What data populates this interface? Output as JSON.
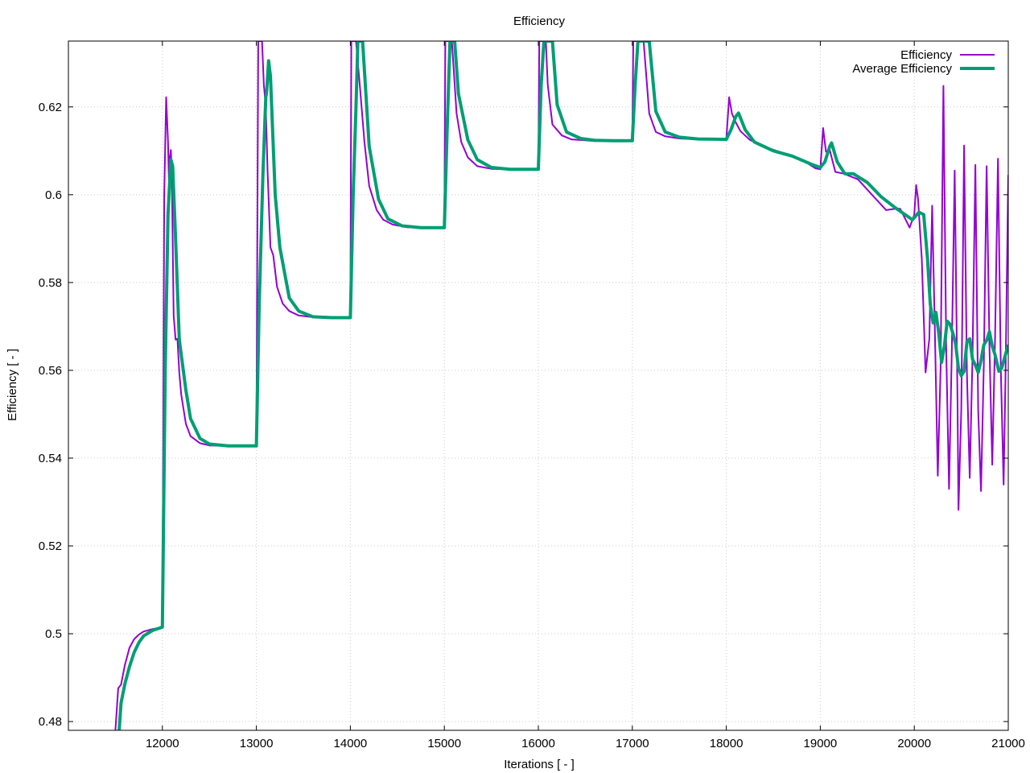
{
  "chart_data": {
    "type": "line",
    "title": "Efficiency",
    "xlabel": "Iterations [ - ]",
    "ylabel": "Efficiency [ - ]",
    "xlim": [
      11000,
      21000
    ],
    "ylim": [
      0.478,
      0.635
    ],
    "xticks": [
      12000,
      13000,
      14000,
      15000,
      16000,
      17000,
      18000,
      19000,
      20000,
      21000
    ],
    "yticks": [
      0.48,
      0.5,
      0.52,
      0.54,
      0.56,
      0.58,
      0.6,
      0.62
    ],
    "ytick_labels": [
      "0.48",
      "0.5",
      "0.52",
      "0.54",
      "0.56",
      "0.58",
      "0.6",
      "0.62"
    ],
    "grid": true,
    "legend_position": "top-right",
    "series": [
      {
        "name": "Efficiency",
        "color": "#9400d3",
        "points": [
          [
            11500,
            0.478
          ],
          [
            11530,
            0.4876
          ],
          [
            11560,
            0.4884
          ],
          [
            11600,
            0.4928
          ],
          [
            11650,
            0.4968
          ],
          [
            11700,
            0.4988
          ],
          [
            11750,
            0.4998
          ],
          [
            11800,
            0.5005
          ],
          [
            11900,
            0.5011
          ],
          [
            12000,
            0.5014
          ],
          [
            12020,
            0.6
          ],
          [
            12040,
            0.6222
          ],
          [
            12060,
            0.612
          ],
          [
            12070,
            0.6025
          ],
          [
            12080,
            0.6085
          ],
          [
            12090,
            0.6102
          ],
          [
            12100,
            0.605
          ],
          [
            12120,
            0.5725
          ],
          [
            12140,
            0.567
          ],
          [
            12160,
            0.5672
          ],
          [
            12180,
            0.5595
          ],
          [
            12200,
            0.5545
          ],
          [
            12250,
            0.5478
          ],
          [
            12300,
            0.545
          ],
          [
            12400,
            0.5434
          ],
          [
            12500,
            0.5429
          ],
          [
            12700,
            0.5428
          ],
          [
            13000,
            0.5428
          ],
          [
            13020,
            0.635
          ],
          [
            13060,
            0.635
          ],
          [
            13080,
            0.625
          ],
          [
            13100,
            0.62
          ],
          [
            13120,
            0.605
          ],
          [
            13150,
            0.588
          ],
          [
            13180,
            0.5862
          ],
          [
            13220,
            0.579
          ],
          [
            13280,
            0.5752
          ],
          [
            13350,
            0.5735
          ],
          [
            13450,
            0.5725
          ],
          [
            13600,
            0.5721
          ],
          [
            13800,
            0.572
          ],
          [
            14000,
            0.572
          ],
          [
            14010,
            0.635
          ],
          [
            14060,
            0.635
          ],
          [
            14100,
            0.625
          ],
          [
            14150,
            0.612
          ],
          [
            14200,
            0.602
          ],
          [
            14280,
            0.5965
          ],
          [
            14350,
            0.5943
          ],
          [
            14450,
            0.5932
          ],
          [
            14600,
            0.5926
          ],
          [
            14800,
            0.5925
          ],
          [
            15000,
            0.5925
          ],
          [
            15010,
            0.635
          ],
          [
            15080,
            0.635
          ],
          [
            15130,
            0.6185
          ],
          [
            15180,
            0.612
          ],
          [
            15250,
            0.6085
          ],
          [
            15350,
            0.6065
          ],
          [
            15500,
            0.6059
          ],
          [
            15700,
            0.6058
          ],
          [
            16000,
            0.6058
          ],
          [
            16010,
            0.635
          ],
          [
            16080,
            0.635
          ],
          [
            16100,
            0.625
          ],
          [
            16150,
            0.616
          ],
          [
            16250,
            0.6135
          ],
          [
            16350,
            0.6126
          ],
          [
            16500,
            0.6124
          ],
          [
            16600,
            0.6122
          ],
          [
            16700,
            0.6124
          ],
          [
            16800,
            0.6122
          ],
          [
            17000,
            0.6122
          ],
          [
            17010,
            0.635
          ],
          [
            17120,
            0.635
          ],
          [
            17180,
            0.6185
          ],
          [
            17250,
            0.6143
          ],
          [
            17350,
            0.6133
          ],
          [
            17500,
            0.6128
          ],
          [
            17700,
            0.6126
          ],
          [
            18000,
            0.6126
          ],
          [
            18030,
            0.6222
          ],
          [
            18060,
            0.6185
          ],
          [
            18100,
            0.6165
          ],
          [
            18150,
            0.6145
          ],
          [
            18250,
            0.6125
          ],
          [
            18400,
            0.611
          ],
          [
            18600,
            0.6095
          ],
          [
            18800,
            0.608
          ],
          [
            18950,
            0.606
          ],
          [
            19000,
            0.6058
          ],
          [
            19030,
            0.6152
          ],
          [
            19060,
            0.6098
          ],
          [
            19100,
            0.6102
          ],
          [
            19160,
            0.6052
          ],
          [
            19250,
            0.6048
          ],
          [
            19400,
            0.6035
          ],
          [
            19550,
            0.6
          ],
          [
            19700,
            0.5965
          ],
          [
            19800,
            0.5968
          ],
          [
            19850,
            0.5968
          ],
          [
            19950,
            0.5925
          ],
          [
            20000,
            0.5955
          ],
          [
            20020,
            0.6022
          ],
          [
            20040,
            0.599
          ],
          [
            20080,
            0.5855
          ],
          [
            20120,
            0.5595
          ],
          [
            20160,
            0.5672
          ],
          [
            20190,
            0.5975
          ],
          [
            20220,
            0.568
          ],
          [
            20250,
            0.536
          ],
          [
            20280,
            0.5605
          ],
          [
            20310,
            0.6248
          ],
          [
            20340,
            0.5645
          ],
          [
            20370,
            0.533
          ],
          [
            20400,
            0.5652
          ],
          [
            20430,
            0.6055
          ],
          [
            20460,
            0.5535
          ],
          [
            20470,
            0.5282
          ],
          [
            20500,
            0.551
          ],
          [
            20530,
            0.6112
          ],
          [
            20560,
            0.5595
          ],
          [
            20590,
            0.5355
          ],
          [
            20620,
            0.5635
          ],
          [
            20650,
            0.6068
          ],
          [
            20680,
            0.551
          ],
          [
            20710,
            0.5325
          ],
          [
            20740,
            0.5612
          ],
          [
            20770,
            0.6065
          ],
          [
            20800,
            0.5655
          ],
          [
            20830,
            0.5385
          ],
          [
            20860,
            0.5675
          ],
          [
            20890,
            0.6082
          ],
          [
            20920,
            0.5605
          ],
          [
            20950,
            0.534
          ],
          [
            20970,
            0.558
          ],
          [
            21000,
            0.6045
          ]
        ]
      },
      {
        "name": "Average Efficiency",
        "color": "#009e73",
        "points": [
          [
            11540,
            0.478
          ],
          [
            11560,
            0.4842
          ],
          [
            11600,
            0.4885
          ],
          [
            11650,
            0.4925
          ],
          [
            11700,
            0.4958
          ],
          [
            11750,
            0.498
          ],
          [
            11800,
            0.4995
          ],
          [
            11900,
            0.5008
          ],
          [
            12000,
            0.5015
          ],
          [
            12030,
            0.56
          ],
          [
            12060,
            0.5955
          ],
          [
            12090,
            0.608
          ],
          [
            12110,
            0.6065
          ],
          [
            12140,
            0.59
          ],
          [
            12180,
            0.567
          ],
          [
            12250,
            0.5555
          ],
          [
            12300,
            0.549
          ],
          [
            12400,
            0.5445
          ],
          [
            12500,
            0.5432
          ],
          [
            12700,
            0.5428
          ],
          [
            13000,
            0.5428
          ],
          [
            13030,
            0.575
          ],
          [
            13070,
            0.605
          ],
          [
            13100,
            0.6222
          ],
          [
            13110,
            0.6235
          ],
          [
            13130,
            0.6305
          ],
          [
            13150,
            0.627
          ],
          [
            13200,
            0.6
          ],
          [
            13250,
            0.588
          ],
          [
            13350,
            0.5765
          ],
          [
            13450,
            0.5735
          ],
          [
            13600,
            0.5722
          ],
          [
            13800,
            0.572
          ],
          [
            14000,
            0.572
          ],
          [
            14030,
            0.6
          ],
          [
            14060,
            0.62
          ],
          [
            14080,
            0.635
          ],
          [
            14130,
            0.635
          ],
          [
            14200,
            0.611
          ],
          [
            14300,
            0.599
          ],
          [
            14400,
            0.5945
          ],
          [
            14550,
            0.5929
          ],
          [
            14750,
            0.5925
          ],
          [
            15000,
            0.5925
          ],
          [
            15030,
            0.615
          ],
          [
            15060,
            0.635
          ],
          [
            15110,
            0.635
          ],
          [
            15150,
            0.623
          ],
          [
            15250,
            0.6125
          ],
          [
            15350,
            0.608
          ],
          [
            15500,
            0.6062
          ],
          [
            15700,
            0.6058
          ],
          [
            16000,
            0.6058
          ],
          [
            16030,
            0.625
          ],
          [
            16060,
            0.635
          ],
          [
            16150,
            0.635
          ],
          [
            16200,
            0.6205
          ],
          [
            16300,
            0.6143
          ],
          [
            16450,
            0.6128
          ],
          [
            16600,
            0.6124
          ],
          [
            16800,
            0.6123
          ],
          [
            17000,
            0.6123
          ],
          [
            17030,
            0.625
          ],
          [
            17060,
            0.635
          ],
          [
            17180,
            0.635
          ],
          [
            17250,
            0.619
          ],
          [
            17350,
            0.6143
          ],
          [
            17500,
            0.6131
          ],
          [
            17700,
            0.6127
          ],
          [
            18000,
            0.6126
          ],
          [
            18050,
            0.6148
          ],
          [
            18100,
            0.6178
          ],
          [
            18130,
            0.6186
          ],
          [
            18200,
            0.6148
          ],
          [
            18300,
            0.612
          ],
          [
            18500,
            0.61
          ],
          [
            18700,
            0.6088
          ],
          [
            18900,
            0.607
          ],
          [
            19000,
            0.6062
          ],
          [
            19050,
            0.6075
          ],
          [
            19100,
            0.611
          ],
          [
            19120,
            0.6118
          ],
          [
            19180,
            0.6075
          ],
          [
            19260,
            0.6048
          ],
          [
            19350,
            0.6048
          ],
          [
            19500,
            0.6028
          ],
          [
            19650,
            0.5995
          ],
          [
            19800,
            0.597
          ],
          [
            19900,
            0.5955
          ],
          [
            19980,
            0.5943
          ],
          [
            20050,
            0.596
          ],
          [
            20100,
            0.5955
          ],
          [
            20140,
            0.5855
          ],
          [
            20170,
            0.575
          ],
          [
            20200,
            0.5708
          ],
          [
            20230,
            0.5732
          ],
          [
            20260,
            0.5685
          ],
          [
            20290,
            0.5618
          ],
          [
            20320,
            0.5655
          ],
          [
            20350,
            0.5712
          ],
          [
            20380,
            0.5705
          ],
          [
            20410,
            0.5685
          ],
          [
            20440,
            0.566
          ],
          [
            20470,
            0.5605
          ],
          [
            20500,
            0.5588
          ],
          [
            20530,
            0.5598
          ],
          [
            20560,
            0.5665
          ],
          [
            20590,
            0.5672
          ],
          [
            20620,
            0.5625
          ],
          [
            20650,
            0.5612
          ],
          [
            20680,
            0.5595
          ],
          [
            20710,
            0.5622
          ],
          [
            20740,
            0.5658
          ],
          [
            20770,
            0.5668
          ],
          [
            20800,
            0.5688
          ],
          [
            20830,
            0.5655
          ],
          [
            20860,
            0.5635
          ],
          [
            20900,
            0.5598
          ],
          [
            20930,
            0.5605
          ],
          [
            20960,
            0.5628
          ],
          [
            21000,
            0.5658
          ]
        ]
      }
    ]
  }
}
